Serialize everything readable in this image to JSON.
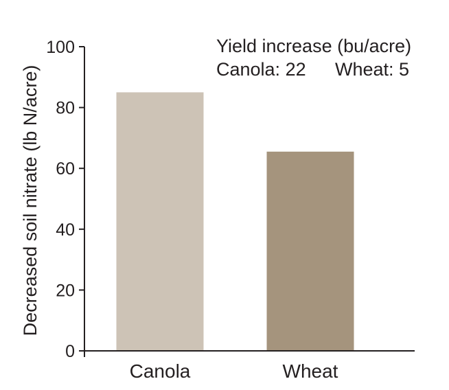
{
  "chart_data": {
    "type": "bar",
    "categories": [
      "Canola",
      "Wheat"
    ],
    "values": [
      85,
      65.5
    ],
    "ylabel": "Decreased soil nitrate (lb N/acre)",
    "xlabel": "",
    "ylim": [
      0,
      100
    ],
    "yticks": [
      0,
      20,
      40,
      60,
      80,
      100
    ],
    "ytick_labels": [
      "0",
      "20",
      "40",
      "60",
      "80",
      "100"
    ],
    "grid": false,
    "bar_colors": [
      "#cdc3b6",
      "#a5947d"
    ],
    "axis_color": "#231f20",
    "annotation": {
      "title": "Yield increase (bu/acre)",
      "canola": "Canola: 22",
      "wheat": "Wheat: 5"
    }
  }
}
